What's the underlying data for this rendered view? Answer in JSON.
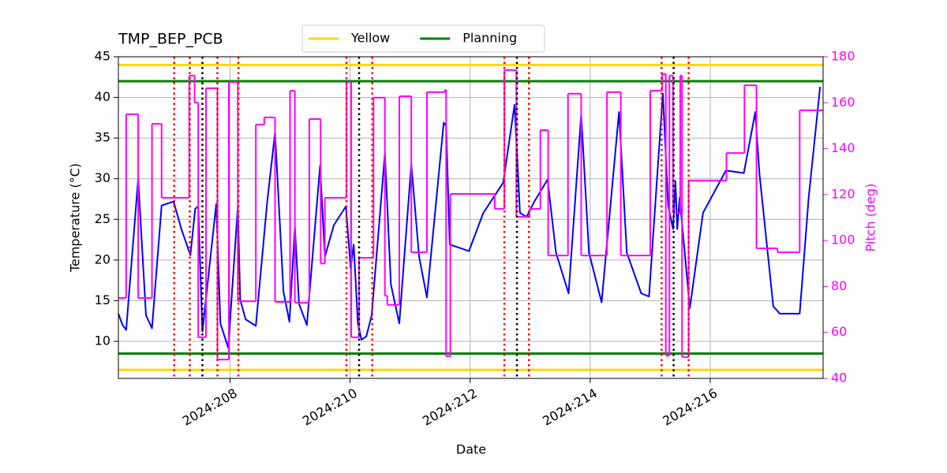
{
  "chart_data": {
    "type": "line",
    "title": "TMP_BEP_PCB",
    "xlabel": "Date",
    "ylabel": "Temperature (°C)",
    "y2label": "Pitch (deg)",
    "xlim": [
      206.14,
      217.88
    ],
    "xticks": [
      {
        "value": 208,
        "label": "2024:208"
      },
      {
        "value": 210,
        "label": "2024:210"
      },
      {
        "value": 212,
        "label": "2024:212"
      },
      {
        "value": 214,
        "label": "2024:214"
      },
      {
        "value": 216,
        "label": "2024:216"
      }
    ],
    "ylim": [
      5.44,
      45
    ],
    "yticks": [
      10,
      15,
      20,
      25,
      30,
      35,
      40,
      45
    ],
    "y2lim": [
      40,
      180
    ],
    "y2ticks": [
      40,
      60,
      80,
      100,
      120,
      140,
      160,
      180
    ],
    "y2color": "#ff00ff",
    "grid": true,
    "legend_loc": "upper center",
    "series": [
      {
        "color": "#0000ff",
        "x": [
          206.14,
          206.21,
          206.27,
          206.47,
          206.6,
          206.7,
          206.86,
          207.06,
          207.19,
          207.34,
          207.42,
          207.47,
          207.54,
          207.77,
          207.84,
          207.97,
          208.13,
          208.17,
          208.26,
          208.43,
          208.62,
          208.75,
          208.89,
          208.99,
          209.08,
          209.15,
          209.28,
          209.5,
          209.58,
          209.73,
          209.93,
          210.01,
          210.06,
          210.13,
          210.19,
          210.27,
          210.36,
          210.58,
          210.68,
          210.82,
          211.02,
          211.15,
          211.28,
          211.56,
          211.6,
          211.66,
          211.98,
          212.22,
          212.55,
          212.74,
          212.83,
          212.94,
          213.07,
          213.29,
          213.43,
          213.64,
          213.85,
          213.98,
          214.19,
          214.48,
          214.61,
          214.85,
          214.98,
          215.21,
          215.3,
          215.38,
          215.42,
          215.45,
          215.49,
          215.66,
          215.88,
          216.26,
          216.56,
          216.75,
          216.82,
          217.05,
          217.16,
          217.49,
          217.64,
          217.83
        ],
        "values": [
          13.4,
          12.0,
          11.4,
          30.0,
          13.2,
          11.6,
          26.7,
          27.2,
          23.8,
          20.6,
          26.3,
          26.6,
          11.2,
          26.9,
          12.2,
          9.2,
          26.6,
          15.1,
          12.7,
          11.9,
          27.2,
          35.7,
          16.1,
          12.4,
          24.1,
          14.6,
          12.0,
          31.6,
          20.4,
          24.3,
          26.6,
          19.0,
          21.9,
          12.2,
          10.2,
          10.6,
          13.2,
          33.1,
          17.0,
          12.2,
          31.8,
          20.4,
          15.4,
          36.9,
          36.5,
          21.9,
          21.1,
          25.8,
          29.5,
          39.1,
          25.8,
          25.3,
          27.2,
          29.9,
          20.9,
          15.9,
          37.9,
          20.9,
          14.8,
          38.2,
          20.9,
          15.9,
          15.5,
          40.5,
          26.7,
          23.8,
          29.7,
          23.8,
          27.7,
          14.1,
          25.8,
          31.0,
          30.7,
          38.2,
          30.6,
          14.3,
          13.4,
          13.4,
          27.7,
          41.3
        ]
      },
      {
        "color": "#ff00ff",
        "axis": "y2",
        "drawstyle": "steps-post",
        "x": [
          206.14,
          206.27,
          206.47,
          206.7,
          206.86,
          207.32,
          207.41,
          207.47,
          207.6,
          207.79,
          207.98,
          208.13,
          208.43,
          208.57,
          208.75,
          209.0,
          209.08,
          209.32,
          209.51,
          209.58,
          209.94,
          210.02,
          210.15,
          210.39,
          210.58,
          210.62,
          210.82,
          211.02,
          211.28,
          211.58,
          211.6,
          211.67,
          212.41,
          212.57,
          212.77,
          212.99,
          213.17,
          213.3,
          213.63,
          213.85,
          214.28,
          214.51,
          215.0,
          215.2,
          215.26,
          215.32,
          215.38,
          215.5,
          215.53,
          215.64,
          216.27,
          216.57,
          216.77,
          217.12,
          217.49
        ],
        "values": [
          75.0,
          155.0,
          75.0,
          150.8,
          118.6,
          171.8,
          160.0,
          57.9,
          166.3,
          48.2,
          169.0,
          73.6,
          150.5,
          153.6,
          73.3,
          165.2,
          73.0,
          152.9,
          90.0,
          118.6,
          169.0,
          57.9,
          92.5,
          162.2,
          76.0,
          72.0,
          162.8,
          94.9,
          164.6,
          165.6,
          49.6,
          120.3,
          113.8,
          174.2,
          110.3,
          113.8,
          148.1,
          93.5,
          163.9,
          93.5,
          164.6,
          93.5,
          165.2,
          172.5,
          49.9,
          171.8,
          112.0,
          171.8,
          49.3,
          126.1,
          138.1,
          167.6,
          96.6,
          94.9,
          156.7
        ]
      }
    ],
    "hlines": [
      {
        "name": "Yellow",
        "color": "#ffd700",
        "values": [
          6.5,
          44
        ]
      },
      {
        "name": "Planning",
        "color": "#008000",
        "values": [
          8.5,
          42
        ]
      }
    ],
    "vlines": [
      {
        "color": "#ff0000",
        "x": [
          207.07,
          207.33,
          207.79,
          208.14,
          209.94,
          210.37,
          212.57,
          212.98,
          215.19,
          215.64
        ]
      },
      {
        "color": "#000000",
        "x": [
          207.54,
          210.15,
          212.78,
          215.39
        ]
      }
    ]
  }
}
